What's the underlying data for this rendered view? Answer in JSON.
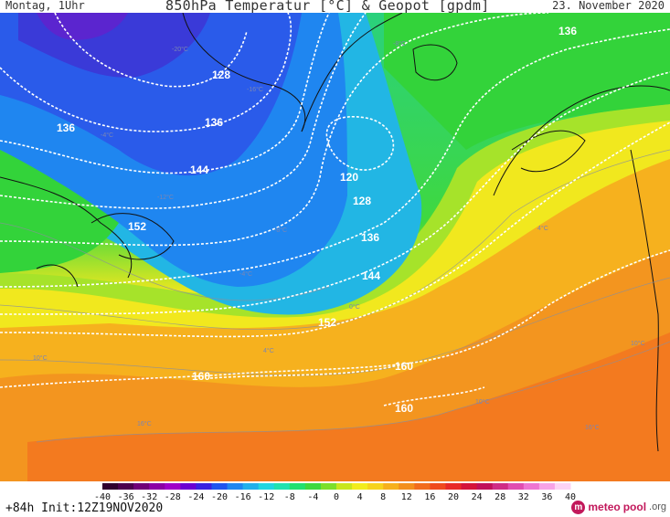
{
  "header": {
    "day": "Montag, 1Uhr",
    "title": "850hPa Temperatur [°C] & Geopot [gpdm]",
    "date": "23. November 2020"
  },
  "footer": {
    "run": "+84h  Init:12Z19NOV2020",
    "logo_part1": "meteo",
    "logo_part2": "pool",
    "logo_part3": ".org",
    "logo_icon": "m-circle-icon"
  },
  "geopotential_labels": [
    "128",
    "136",
    "136",
    "136",
    "144",
    "120",
    "128",
    "136",
    "144",
    "152",
    "152",
    "160",
    "160",
    "160"
  ],
  "temperature_labels": [
    "-20°C",
    "-16°C",
    "-12°C",
    "-8°C",
    "-8°C",
    "-4°C",
    "-4°C",
    "0°C",
    "4°C",
    "4°C",
    "10°C",
    "10°C",
    "10°C",
    "16°C",
    "16°C"
  ],
  "legend": {
    "ticks": [
      "-40",
      "-36",
      "-32",
      "-28",
      "-24",
      "-20",
      "-16",
      "-12",
      "-8",
      "-4",
      "0",
      "4",
      "8",
      "12",
      "16",
      "20",
      "24",
      "28",
      "32",
      "36",
      "40"
    ],
    "colors": [
      "#30002e",
      "#4c004e",
      "#700078",
      "#8b00a5",
      "#a000c8",
      "#6b00d2",
      "#3a22e0",
      "#1f55ef",
      "#1f86f0",
      "#22b0ea",
      "#22d6e0",
      "#22e2b0",
      "#22e070",
      "#3fd83f",
      "#7ddf2a",
      "#c8e61e",
      "#f2ec1e",
      "#f6d31e",
      "#f6b11e",
      "#f38f1e",
      "#f26c1e",
      "#ef4a1e",
      "#e82a28",
      "#d4143a",
      "#c0105a",
      "#cf2c86",
      "#e04db0",
      "#ee75d2",
      "#f7a3e6",
      "#fcd3f4"
    ]
  },
  "colors": {
    "very_cold": "#2a5bea",
    "cold": "#1f86f0",
    "cool": "#22b6e4",
    "mild_cool": "#2ad17d",
    "green": "#33d33a",
    "lime": "#a6e32a",
    "yellow": "#f1e81e",
    "orange": "#f6b11e",
    "warm_orange": "#f3951f",
    "deep_orange": "#f37a1f",
    "contour": "#ffffff",
    "coast": "#111111"
  }
}
